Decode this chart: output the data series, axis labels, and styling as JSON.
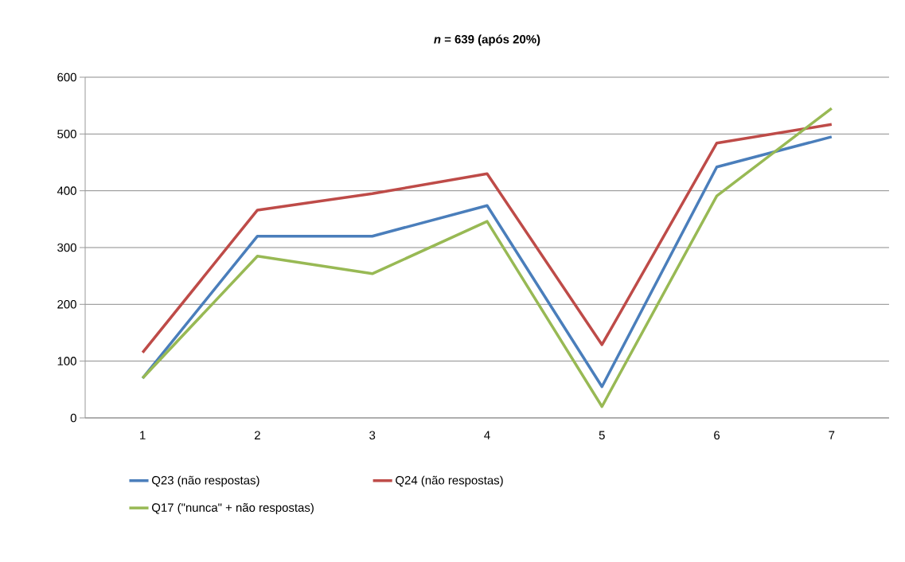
{
  "chart_data": {
    "type": "line",
    "title": "*n* = 639 (após 20%)",
    "categories": [
      "1",
      "2",
      "3",
      "4",
      "5",
      "6",
      "7"
    ],
    "series": [
      {
        "name": "Q23 (não respostas)",
        "color": "#4a7ebb",
        "values": [
          70,
          320,
          320,
          374,
          55,
          442,
          495
        ]
      },
      {
        "name": "Q24 (não respostas)",
        "color": "#be4b48",
        "values": [
          115,
          366,
          395,
          430,
          129,
          484,
          517
        ]
      },
      {
        "name": "Q17 (\"nunca\" + não respostas)",
        "color": "#98b954",
        "values": [
          70,
          285,
          254,
          346,
          20,
          391,
          545
        ]
      }
    ],
    "ylim": [
      0,
      600
    ],
    "yticks": [
      0,
      100,
      200,
      300,
      400,
      500,
      600
    ],
    "grid": "y",
    "legend": "bottom",
    "marker": "none",
    "line_style": "solid"
  }
}
